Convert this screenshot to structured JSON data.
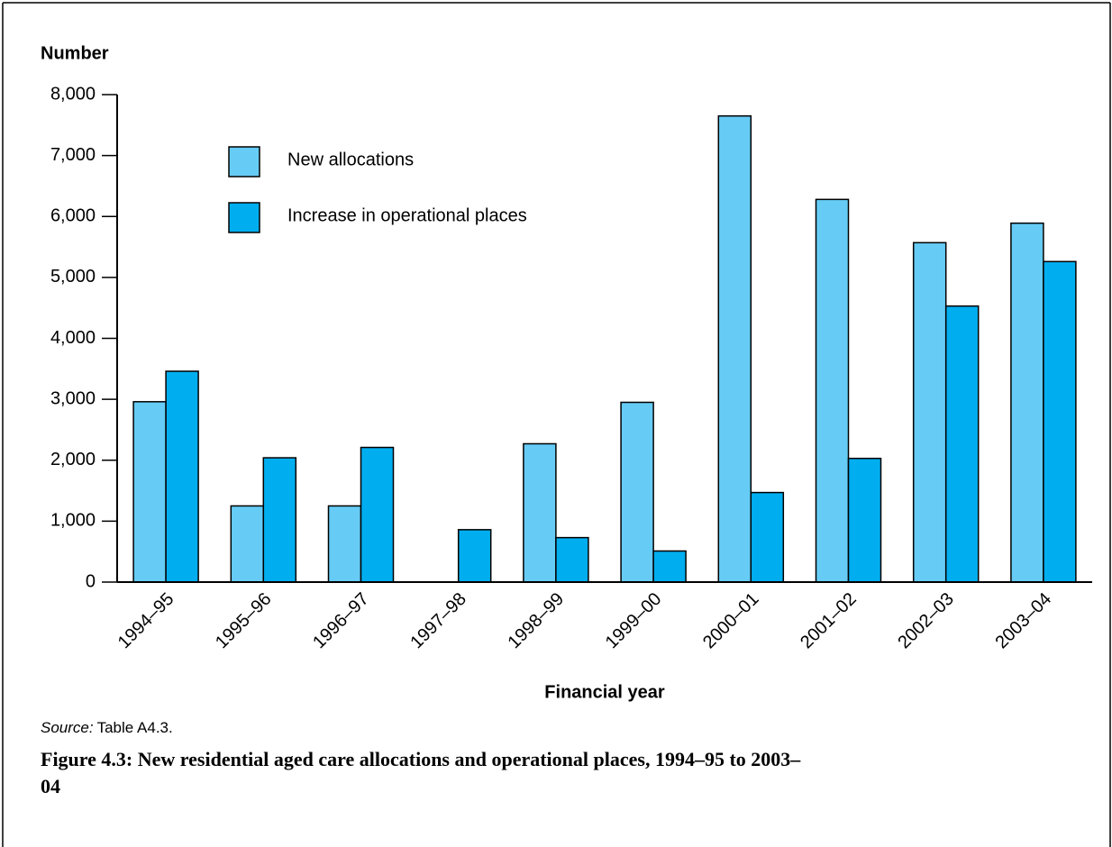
{
  "chart_data": {
    "type": "bar",
    "y_axis_label": "Number",
    "x_axis_label": "Financial year",
    "source_label": "Source:",
    "source_text": "Table A4.3.",
    "caption": "Figure 4.3: New residential aged care allocations and operational places, 1994–95 to 2003–04",
    "categories": [
      "1994–95",
      "1995–96",
      "1996–97",
      "1997–98",
      "1998–99",
      "1999–00",
      "2000–01",
      "2001–02",
      "2002–03",
      "2003–04"
    ],
    "series": [
      {
        "name": "New allocations",
        "color": "#66ccf5",
        "values": [
          2960,
          1250,
          1250,
          0,
          2270,
          2950,
          7650,
          6280,
          5570,
          5890
        ]
      },
      {
        "name": "Increase in operational places",
        "color": "#00aeef",
        "values": [
          3460,
          2040,
          2210,
          860,
          730,
          510,
          1470,
          2030,
          4530,
          5260
        ]
      }
    ],
    "ylim": [
      0,
      8000
    ],
    "yticks": [
      0,
      {
        "value": 1000,
        "label": "1,000"
      },
      {
        "value": 2000,
        "label": "2,000"
      },
      {
        "value": 3000,
        "label": "3,000"
      },
      {
        "value": 4000,
        "label": "4,000"
      },
      {
        "value": 5000,
        "label": "5,000"
      },
      {
        "value": 6000,
        "label": "6,000"
      },
      {
        "value": 7000,
        "label": "7,000"
      },
      {
        "value": 8000,
        "label": "8,000"
      }
    ],
    "grid": false,
    "legend": "top-left"
  }
}
